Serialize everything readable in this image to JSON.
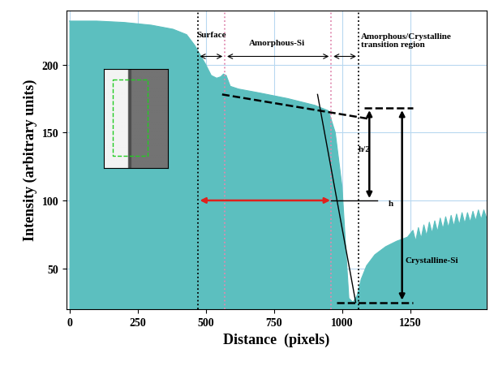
{
  "chart_data": {
    "type": "area",
    "xlabel": "Distance  (pixels)",
    "ylabel": "Intensity (arbitrary units)",
    "color": "#5cbfbf",
    "x": [
      0,
      100,
      200,
      300,
      380,
      430,
      460,
      480,
      500,
      520,
      540,
      555,
      565,
      575,
      590,
      620,
      700,
      800,
      900,
      950,
      975,
      1000,
      1015,
      1025,
      1040,
      1055,
      1070,
      1090,
      1120,
      1160,
      1200,
      1240,
      1260,
      1270,
      1280,
      1290,
      1300,
      1310,
      1320,
      1330,
      1340,
      1350,
      1360,
      1370,
      1380,
      1390,
      1400,
      1410,
      1420,
      1430,
      1440,
      1450,
      1460,
      1470,
      1480,
      1490,
      1500,
      1510,
      1520,
      1530
    ],
    "values": [
      232,
      232,
      231,
      229,
      226,
      222,
      214,
      207,
      200,
      192,
      190,
      191,
      193,
      192,
      184,
      182,
      179,
      175,
      170,
      166,
      150,
      110,
      60,
      28,
      25,
      30,
      42,
      52,
      60,
      66,
      70,
      73,
      78,
      70,
      80,
      72,
      82,
      74,
      84,
      76,
      85,
      77,
      87,
      79,
      88,
      80,
      89,
      81,
      90,
      82,
      91,
      83,
      91,
      84,
      92,
      85,
      93,
      86,
      93,
      87
    ],
    "xlim": [
      -10,
      1530
    ],
    "ylim": [
      20,
      240
    ],
    "xticks": [
      0,
      250,
      500,
      750,
      1000,
      1250
    ],
    "yticks": [
      50,
      100,
      150,
      200
    ],
    "grid": true,
    "annotations": [
      {
        "text": "Surface",
        "x": 520,
        "y": 222
      },
      {
        "text": "Amorphous-Si",
        "x": 760,
        "y": 216
      },
      {
        "text": "Amorphous/Crystalline\ntransition region",
        "x": 1070,
        "y": 218
      },
      {
        "text": "h/2",
        "x": 1060,
        "y": 138
      },
      {
        "text": "h",
        "x": 1170,
        "y": 98
      },
      {
        "text": "Crystalline-Si",
        "x": 1230,
        "y": 56
      }
    ]
  }
}
